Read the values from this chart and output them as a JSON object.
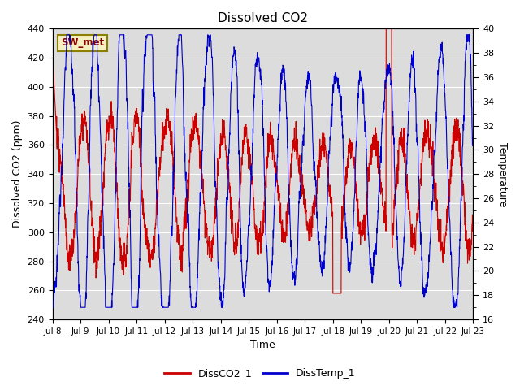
{
  "title": "Dissolved CO2",
  "xlabel": "Time",
  "ylabel_left": "Dissolved CO2 (ppm)",
  "ylabel_right": "Temperature",
  "station_label": "SW_met",
  "ylim_left": [
    240,
    440
  ],
  "ylim_right": [
    16,
    40
  ],
  "yticks_left": [
    240,
    260,
    280,
    300,
    320,
    340,
    360,
    380,
    400,
    420,
    440
  ],
  "yticks_right": [
    16,
    18,
    20,
    22,
    24,
    26,
    28,
    30,
    32,
    34,
    36,
    38,
    40
  ],
  "line1_color": "#cc0000",
  "line2_color": "#0000cc",
  "background_color": "#dcdcdc",
  "legend_entries": [
    "DissCO2_1",
    "DissTemp_1"
  ],
  "x_tick_labels": [
    "Jul 8",
    "Jul 9",
    "Jul 10",
    "Jul 11",
    "Jul 12",
    "Jul 13",
    "Jul 14",
    "Jul 15",
    "Jul 16",
    "Jul 17",
    "Jul 18",
    "Jul 19",
    "Jul 20",
    "Jul 21",
    "Jul 22",
    "Jul 23"
  ],
  "n_points": 2000,
  "n_days": 15
}
